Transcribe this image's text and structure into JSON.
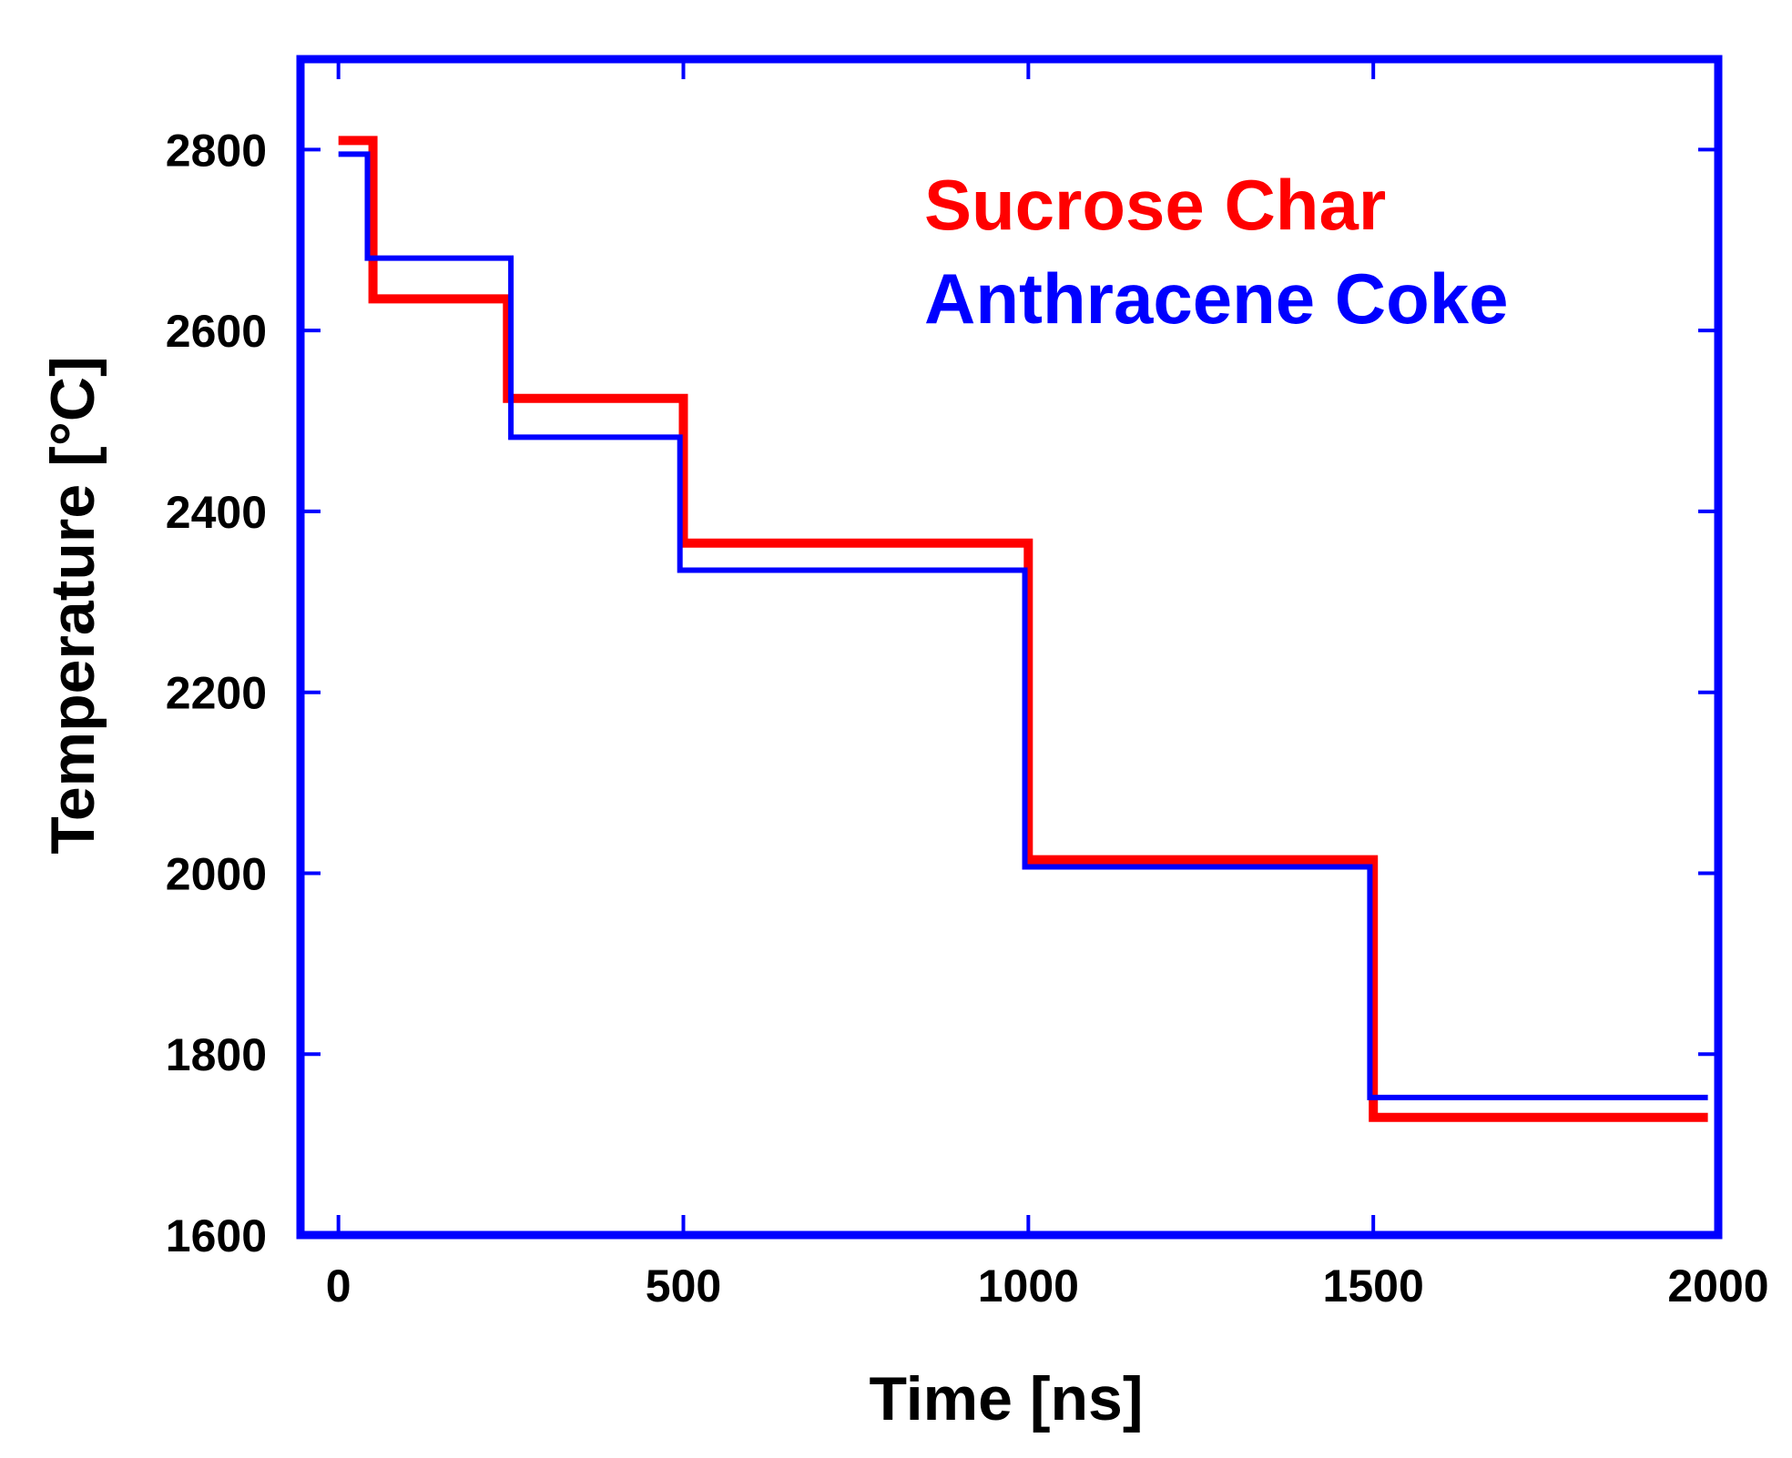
{
  "chart_data": {
    "type": "line",
    "step": true,
    "title": "",
    "xlabel": "Time [ns]",
    "ylabel": "Temperature [°C]",
    "xlim": [
      -55,
      2000
    ],
    "ylim": [
      1600,
      2900
    ],
    "xticks": [
      0,
      500,
      1000,
      1500,
      2000
    ],
    "yticks": [
      1600,
      1800,
      2000,
      2200,
      2400,
      2600,
      2800
    ],
    "xtick_labels": [
      "0",
      "500",
      "1000",
      "1500",
      "2000"
    ],
    "ytick_labels": [
      "1600",
      "1800",
      "2000",
      "2200",
      "2400",
      "2600",
      "2800"
    ],
    "legend_position": "top-right",
    "series": [
      {
        "name": "Sucrose Char",
        "color": "#ff0000",
        "width": 10,
        "points": [
          [
            0,
            2810
          ],
          [
            50,
            2810
          ],
          [
            50,
            2635
          ],
          [
            245,
            2635
          ],
          [
            245,
            2525
          ],
          [
            500,
            2525
          ],
          [
            500,
            2365
          ],
          [
            1000,
            2365
          ],
          [
            1000,
            2015
          ],
          [
            1500,
            2015
          ],
          [
            1500,
            1730
          ],
          [
            1985,
            1730
          ]
        ]
      },
      {
        "name": "Anthracene Coke",
        "color": "#0000ff",
        "width": 6,
        "points": [
          [
            0,
            2795
          ],
          [
            42,
            2795
          ],
          [
            42,
            2680
          ],
          [
            250,
            2680
          ],
          [
            250,
            2482
          ],
          [
            495,
            2482
          ],
          [
            495,
            2335
          ],
          [
            995,
            2335
          ],
          [
            995,
            2007
          ],
          [
            1495,
            2007
          ],
          [
            1495,
            1752
          ],
          [
            1985,
            1752
          ]
        ]
      }
    ],
    "frame_color": "#0000ff"
  }
}
